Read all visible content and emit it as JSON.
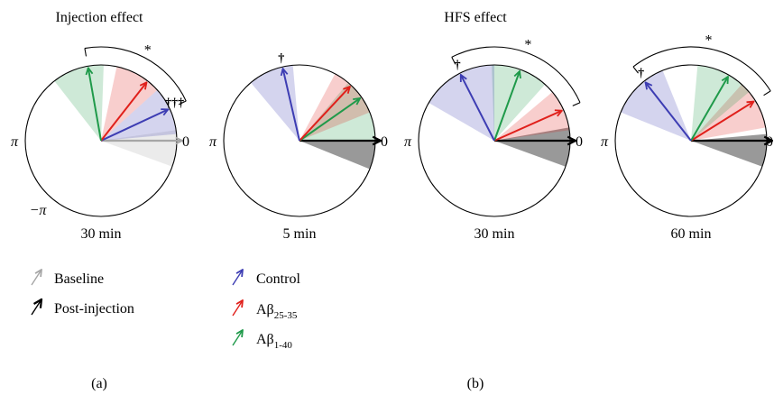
{
  "panel_titles": {
    "a": "Injection effect",
    "b": "HFS effect"
  },
  "panel_labels": {
    "a": "(a)",
    "b": "(b)"
  },
  "angle_labels": {
    "pi": "π",
    "zero": "0",
    "neg_pi": "−π"
  },
  "colors": {
    "baseline": "#a6a6a6",
    "post_injection": "#000000",
    "control": "#3d3db3",
    "abeta_25_35": "#e0201b",
    "abeta_1_40": "#1f9a4a"
  },
  "legend": {
    "baseline": "Baseline",
    "post_injection": "Post-injection",
    "control": "Control",
    "abeta_25_35": {
      "main": "Aβ",
      "sub": "25-35"
    },
    "abeta_1_40": {
      "main": "Aβ",
      "sub": "1-40"
    }
  },
  "plots": [
    {
      "time": "30 min",
      "significance": "*",
      "daggers": "†††",
      "reference": "baseline",
      "arrows": [
        {
          "group": "reference",
          "angle_deg": 0
        },
        {
          "group": "control",
          "angle_deg": 25
        },
        {
          "group": "abeta_25_35",
          "angle_deg": 52
        },
        {
          "group": "abeta_1_40",
          "angle_deg": 100
        }
      ],
      "sectors": [
        {
          "group": "reference",
          "from_deg": -20,
          "to_deg": 8
        },
        {
          "group": "control",
          "from_deg": 5,
          "to_deg": 42
        },
        {
          "group": "abeta_25_35",
          "from_deg": 42,
          "to_deg": 78
        },
        {
          "group": "abeta_1_40",
          "from_deg": 88,
          "to_deg": 128
        }
      ]
    },
    {
      "time": "5 min",
      "significance": "",
      "daggers": "†",
      "reference": "post_injection",
      "arrows": [
        {
          "group": "reference",
          "angle_deg": 0
        },
        {
          "group": "abeta_1_40",
          "angle_deg": 35
        },
        {
          "group": "abeta_25_35",
          "angle_deg": 47
        },
        {
          "group": "control",
          "angle_deg": 103
        }
      ],
      "sectors": [
        {
          "group": "reference",
          "from_deg": -22,
          "to_deg": 0
        },
        {
          "group": "abeta_1_40",
          "from_deg": 0,
          "to_deg": 50
        },
        {
          "group": "abeta_25_35",
          "from_deg": 22,
          "to_deg": 62
        },
        {
          "group": "control",
          "from_deg": 95,
          "to_deg": 130
        }
      ]
    },
    {
      "time": "30 min",
      "significance": "*",
      "daggers": "†",
      "reference": "post_injection",
      "arrows": [
        {
          "group": "reference",
          "angle_deg": 0
        },
        {
          "group": "abeta_25_35",
          "angle_deg": 24
        },
        {
          "group": "abeta_1_40",
          "angle_deg": 70
        },
        {
          "group": "control",
          "angle_deg": 117
        }
      ],
      "sectors": [
        {
          "group": "reference",
          "from_deg": -20,
          "to_deg": 10
        },
        {
          "group": "abeta_25_35",
          "from_deg": 8,
          "to_deg": 40
        },
        {
          "group": "abeta_1_40",
          "from_deg": 48,
          "to_deg": 92
        },
        {
          "group": "control",
          "from_deg": 90,
          "to_deg": 150
        }
      ]
    },
    {
      "time": "60 min",
      "significance": "*",
      "daggers": "†",
      "reference": "post_injection",
      "arrows": [
        {
          "group": "reference",
          "angle_deg": 0
        },
        {
          "group": "abeta_25_35",
          "angle_deg": 32
        },
        {
          "group": "abeta_1_40",
          "angle_deg": 60
        },
        {
          "group": "control",
          "angle_deg": 128
        }
      ],
      "sectors": [
        {
          "group": "reference",
          "from_deg": -20,
          "to_deg": 5
        },
        {
          "group": "abeta_25_35",
          "from_deg": 10,
          "to_deg": 48
        },
        {
          "group": "abeta_1_40",
          "from_deg": 40,
          "to_deg": 85
        },
        {
          "group": "control",
          "from_deg": 112,
          "to_deg": 158
        }
      ]
    }
  ]
}
